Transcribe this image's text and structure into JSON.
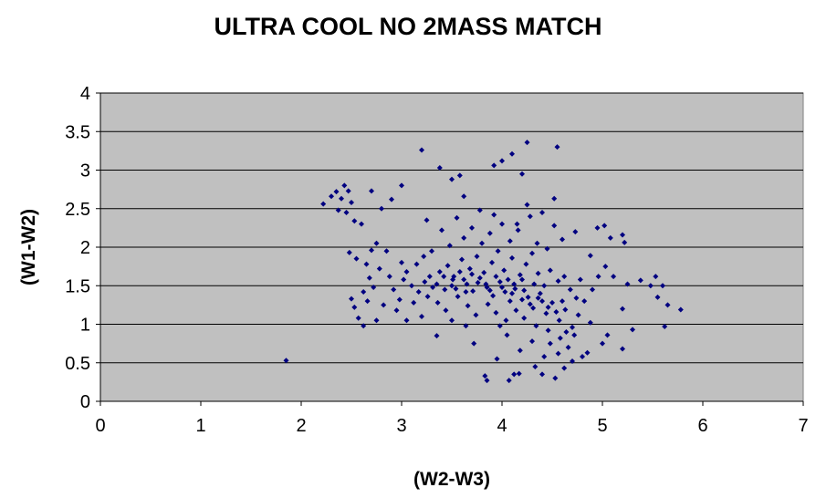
{
  "chart_data": {
    "type": "scatter",
    "title": "ULTRA COOL NO 2MASS MATCH",
    "xlabel": "(W2-W3)",
    "ylabel": "(W1-W2)",
    "xlim": [
      0,
      7
    ],
    "ylim": [
      0,
      4
    ],
    "xticks": [
      "0",
      "1",
      "2",
      "3",
      "4",
      "5",
      "6",
      "7"
    ],
    "yticks": [
      "0",
      "0.5",
      "1",
      "1.5",
      "2",
      "2.5",
      "3",
      "3.5",
      "4"
    ],
    "grid": "horizontal",
    "legend": "none",
    "marker": "diamond",
    "colors": {
      "plot_background": "#c0c0c0",
      "marker": "#000080",
      "gridline": "#000000"
    },
    "points": [
      [
        1.85,
        0.53
      ],
      [
        2.22,
        2.56
      ],
      [
        2.3,
        2.66
      ],
      [
        2.35,
        2.72
      ],
      [
        2.4,
        2.63
      ],
      [
        2.43,
        2.8
      ],
      [
        2.47,
        2.73
      ],
      [
        2.37,
        2.48
      ],
      [
        2.45,
        2.45
      ],
      [
        2.5,
        2.58
      ],
      [
        2.53,
        2.34
      ],
      [
        2.6,
        2.3
      ],
      [
        2.7,
        2.73
      ],
      [
        2.8,
        2.5
      ],
      [
        2.9,
        2.62
      ],
      [
        3.0,
        2.8
      ],
      [
        3.2,
        3.26
      ],
      [
        3.38,
        3.03
      ],
      [
        3.5,
        2.88
      ],
      [
        3.58,
        2.93
      ],
      [
        3.62,
        2.66
      ],
      [
        3.92,
        3.06
      ],
      [
        4.0,
        3.12
      ],
      [
        4.1,
        3.21
      ],
      [
        4.2,
        2.95
      ],
      [
        4.25,
        3.36
      ],
      [
        4.55,
        3.3
      ],
      [
        4.52,
        2.63
      ],
      [
        4.73,
        2.2
      ],
      [
        4.95,
        2.25
      ],
      [
        5.02,
        2.28
      ],
      [
        5.08,
        2.12
      ],
      [
        5.2,
        2.16
      ],
      [
        5.22,
        2.06
      ],
      [
        4.88,
        1.89
      ],
      [
        5.03,
        1.75
      ],
      [
        5.11,
        1.62
      ],
      [
        5.25,
        1.52
      ],
      [
        5.38,
        1.57
      ],
      [
        5.48,
        1.5
      ],
      [
        5.53,
        1.62
      ],
      [
        5.6,
        1.5
      ],
      [
        5.55,
        1.35
      ],
      [
        5.65,
        1.25
      ],
      [
        5.78,
        1.19
      ],
      [
        5.62,
        0.97
      ],
      [
        5.2,
        1.2
      ],
      [
        5.3,
        0.93
      ],
      [
        5.2,
        0.68
      ],
      [
        5.05,
        0.86
      ],
      [
        5.0,
        0.75
      ],
      [
        4.85,
        0.63
      ],
      [
        2.53,
        1.22
      ],
      [
        2.57,
        1.08
      ],
      [
        2.62,
        0.98
      ],
      [
        2.75,
        1.05
      ],
      [
        2.5,
        1.33
      ],
      [
        2.62,
        1.42
      ],
      [
        2.48,
        1.93
      ],
      [
        2.55,
        1.85
      ],
      [
        2.65,
        1.78
      ],
      [
        2.7,
        1.96
      ],
      [
        2.75,
        2.05
      ],
      [
        2.85,
        1.95
      ],
      [
        3.83,
        0.33
      ],
      [
        3.85,
        0.27
      ],
      [
        4.07,
        0.27
      ],
      [
        4.12,
        0.35
      ],
      [
        4.17,
        0.36
      ],
      [
        4.4,
        0.35
      ],
      [
        4.53,
        0.3
      ],
      [
        4.62,
        0.43
      ],
      [
        4.33,
        0.45
      ],
      [
        3.95,
        0.55
      ],
      [
        3.72,
        0.75
      ],
      [
        3.35,
        0.85
      ],
      [
        3.05,
        1.05
      ],
      [
        3.2,
        1.1
      ],
      [
        3.12,
        1.28
      ],
      [
        3.26,
        1.36
      ],
      [
        3.31,
        1.48
      ],
      [
        3.23,
        1.55
      ],
      [
        3.43,
        1.45
      ],
      [
        3.51,
        1.58
      ],
      [
        3.58,
        1.68
      ],
      [
        3.65,
        1.52
      ],
      [
        3.71,
        1.43
      ],
      [
        3.78,
        1.6
      ],
      [
        3.85,
        1.48
      ],
      [
        3.91,
        1.37
      ],
      [
        3.98,
        1.55
      ],
      [
        4.03,
        1.42
      ],
      [
        4.08,
        1.3
      ],
      [
        4.13,
        1.46
      ],
      [
        4.2,
        1.58
      ],
      [
        4.26,
        1.35
      ],
      [
        4.31,
        1.21
      ],
      [
        4.38,
        1.4
      ],
      [
        4.44,
        1.14
      ],
      [
        4.5,
        1.28
      ],
      [
        4.57,
        1.05
      ],
      [
        4.63,
        1.19
      ],
      [
        4.7,
        0.96
      ],
      [
        4.76,
        1.12
      ],
      [
        4.82,
        1.3
      ],
      [
        4.88,
        1.02
      ],
      [
        3.38,
        1.68
      ],
      [
        3.46,
        1.76
      ],
      [
        3.52,
        1.62
      ],
      [
        3.6,
        1.84
      ],
      [
        3.68,
        1.72
      ],
      [
        3.75,
        1.88
      ],
      [
        3.82,
        1.67
      ],
      [
        3.9,
        1.8
      ],
      [
        3.96,
        1.95
      ],
      [
        4.02,
        1.7
      ],
      [
        4.1,
        1.86
      ],
      [
        4.18,
        1.64
      ],
      [
        4.24,
        1.78
      ],
      [
        4.3,
        1.92
      ],
      [
        4.36,
        1.66
      ],
      [
        4.42,
        1.5
      ],
      [
        4.48,
        1.7
      ],
      [
        4.56,
        1.56
      ],
      [
        3.1,
        1.5
      ],
      [
        3.17,
        1.42
      ],
      [
        3.28,
        1.62
      ],
      [
        3.36,
        1.28
      ],
      [
        3.44,
        1.18
      ],
      [
        3.56,
        1.36
      ],
      [
        3.66,
        1.24
      ],
      [
        3.74,
        1.12
      ],
      [
        3.86,
        1.26
      ],
      [
        3.94,
        1.15
      ],
      [
        4.04,
        1.05
      ],
      [
        4.14,
        1.18
      ],
      [
        4.22,
        1.08
      ],
      [
        4.34,
        0.98
      ],
      [
        4.46,
        0.92
      ],
      [
        4.58,
        0.82
      ],
      [
        4.66,
        0.7
      ],
      [
        4.72,
        0.86
      ],
      [
        3.48,
        2.02
      ],
      [
        3.62,
        2.12
      ],
      [
        3.7,
        2.25
      ],
      [
        3.8,
        2.05
      ],
      [
        3.88,
        2.18
      ],
      [
        4.0,
        2.3
      ],
      [
        4.08,
        2.08
      ],
      [
        4.16,
        2.22
      ],
      [
        4.28,
        2.4
      ],
      [
        4.35,
        2.05
      ],
      [
        4.45,
        1.98
      ],
      [
        4.6,
        2.1
      ],
      [
        2.92,
        1.45
      ],
      [
        2.98,
        1.32
      ],
      [
        3.02,
        1.58
      ],
      [
        2.88,
        1.62
      ],
      [
        2.82,
        1.25
      ],
      [
        2.95,
        1.18
      ],
      [
        4.9,
        1.45
      ],
      [
        4.96,
        1.62
      ],
      [
        4.78,
        1.58
      ],
      [
        4.68,
        1.45
      ],
      [
        4.62,
        1.62
      ],
      [
        4.74,
        1.34
      ],
      [
        3.15,
        1.78
      ],
      [
        3.22,
        1.88
      ],
      [
        3.3,
        1.95
      ],
      [
        3.4,
        2.22
      ],
      [
        3.25,
        2.35
      ],
      [
        3.55,
        2.38
      ],
      [
        4.52,
        2.28
      ],
      [
        4.4,
        2.45
      ],
      [
        4.25,
        2.55
      ],
      [
        4.15,
        2.3
      ],
      [
        3.92,
        2.42
      ],
      [
        3.78,
        2.48
      ],
      [
        3.0,
        1.8
      ],
      [
        3.05,
        1.68
      ],
      [
        2.78,
        1.72
      ],
      [
        2.68,
        1.6
      ],
      [
        2.72,
        1.48
      ],
      [
        2.66,
        1.3
      ],
      [
        4.3,
        0.78
      ],
      [
        4.18,
        0.66
      ],
      [
        4.05,
        0.86
      ],
      [
        3.98,
        0.98
      ],
      [
        3.64,
        0.98
      ],
      [
        3.5,
        1.05
      ],
      [
        4.8,
        0.58
      ],
      [
        4.7,
        0.52
      ],
      [
        4.56,
        0.62
      ],
      [
        4.48,
        0.75
      ],
      [
        4.42,
        0.58
      ],
      [
        4.64,
        0.9
      ],
      [
        3.35,
        1.52
      ],
      [
        3.42,
        1.62
      ],
      [
        3.5,
        1.5
      ],
      [
        3.62,
        1.58
      ],
      [
        3.7,
        1.65
      ],
      [
        3.84,
        1.52
      ],
      [
        3.94,
        1.62
      ],
      [
        4.06,
        1.58
      ],
      [
        4.12,
        1.52
      ],
      [
        4.22,
        1.44
      ],
      [
        4.32,
        1.52
      ],
      [
        4.4,
        1.3
      ],
      [
        3.54,
        1.46
      ],
      [
        3.64,
        1.42
      ],
      [
        3.76,
        1.54
      ],
      [
        3.88,
        1.44
      ],
      [
        4.0,
        1.48
      ],
      [
        4.1,
        1.4
      ],
      [
        4.2,
        1.32
      ],
      [
        4.28,
        1.26
      ],
      [
        4.36,
        1.34
      ],
      [
        4.46,
        1.22
      ],
      [
        4.54,
        1.16
      ],
      [
        4.6,
        1.3
      ]
    ]
  }
}
